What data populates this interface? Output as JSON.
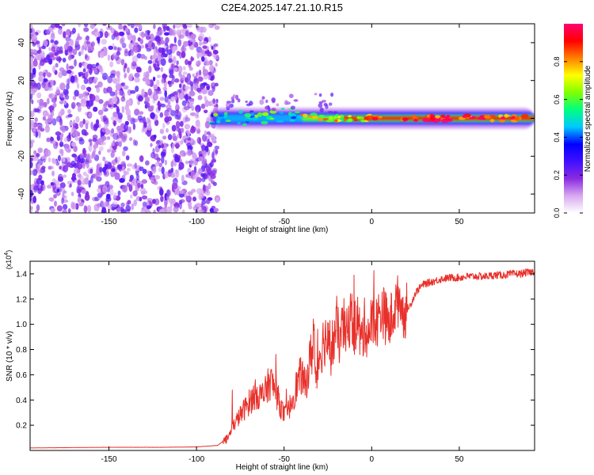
{
  "title": "C2E4.2025.147.21.10.R15",
  "chart_data": [
    {
      "type": "heatmap",
      "name": "spectrogram",
      "xlabel": "Height of straight line (km)",
      "ylabel": "Frequency (Hz)",
      "xlim": [
        -195,
        93
      ],
      "ylim": [
        -50,
        50
      ],
      "xticks": [
        -150,
        -100,
        -50,
        0,
        50
      ],
      "xtick_labels": [
        "-150",
        "-100",
        "-50",
        "0",
        "50"
      ],
      "yticks": [
        -40,
        -20,
        0,
        20,
        40
      ],
      "ytick_labels": [
        "-40",
        "-20",
        "0",
        "20",
        "40"
      ],
      "noise_region_x": [
        -195,
        -88
      ],
      "coherent_region_x": [
        -93,
        93
      ],
      "peak_frequency": 0,
      "colorbar": {
        "label": "Normalized spectral amplitude",
        "range": [
          0,
          1
        ],
        "ticks": [
          0,
          0.2,
          0.4,
          0.6,
          0.8
        ],
        "tick_labels": [
          "0.0",
          "0.2",
          "0.4",
          "0.6",
          "0.8"
        ],
        "colors": [
          "#ffffff",
          "#d8a8f0",
          "#8a2be2",
          "#4010ff",
          "#0000ff",
          "#00c8ff",
          "#00ff80",
          "#80ff00",
          "#ffff00",
          "#ff8000",
          "#ff0000",
          "#ff0070"
        ]
      }
    },
    {
      "type": "line",
      "name": "snr",
      "xlabel": "Height of straight line (km)",
      "ylabel": "SNR (10 * v/v)",
      "y_multiplier": "(x10",
      "y_multiplier_exp": "4",
      "y_multiplier_close": ")",
      "xlim": [
        -195,
        93
      ],
      "ylim": [
        0,
        1.5
      ],
      "xticks": [
        -150,
        -100,
        -50,
        0,
        50
      ],
      "xtick_labels": [
        "-150",
        "-100",
        "-50",
        "0",
        "50"
      ],
      "yticks": [
        0.2,
        0.4,
        0.6,
        0.8,
        1.0,
        1.2,
        1.4
      ],
      "ytick_labels": [
        "0.2",
        "0.4",
        "0.6",
        "0.8",
        "1.0",
        "1.2",
        "1.4"
      ],
      "color": "#e8312b",
      "x": [
        -195,
        -150,
        -120,
        -100,
        -88,
        -82,
        -78,
        -74,
        -70,
        -66,
        -62,
        -58,
        -55,
        -52,
        -50,
        -48,
        -45,
        -42,
        -40,
        -38,
        -36,
        -34,
        -33,
        -32,
        -30,
        -28,
        -26,
        -24,
        -22,
        -20,
        -18,
        -16,
        -14,
        -12,
        -10,
        -8,
        -6,
        -4,
        -2,
        0,
        2,
        4,
        6,
        8,
        10,
        12,
        14,
        16,
        18,
        20,
        22,
        25,
        28,
        30,
        35,
        40,
        45,
        50,
        55,
        60,
        65,
        70,
        75,
        80,
        85,
        88,
        90,
        93
      ],
      "y": [
        0.02,
        0.025,
        0.025,
        0.028,
        0.04,
        0.1,
        0.22,
        0.3,
        0.38,
        0.45,
        0.42,
        0.55,
        0.48,
        0.35,
        0.28,
        0.3,
        0.42,
        0.55,
        0.6,
        0.5,
        0.65,
        0.8,
        1.0,
        0.5,
        0.75,
        0.85,
        0.9,
        0.78,
        0.86,
        0.95,
        0.88,
        1.0,
        0.9,
        1.1,
        0.95,
        1.05,
        0.85,
        1.0,
        0.92,
        1.02,
        1.0,
        1.06,
        1.12,
        1.05,
        0.98,
        1.1,
        1.15,
        1.22,
        1.08,
        1.12,
        1.15,
        1.25,
        1.3,
        1.32,
        1.34,
        1.36,
        1.37,
        1.37,
        1.38,
        1.38,
        1.38,
        1.39,
        1.39,
        1.4,
        1.4,
        1.41,
        1.41,
        1.42
      ]
    }
  ]
}
